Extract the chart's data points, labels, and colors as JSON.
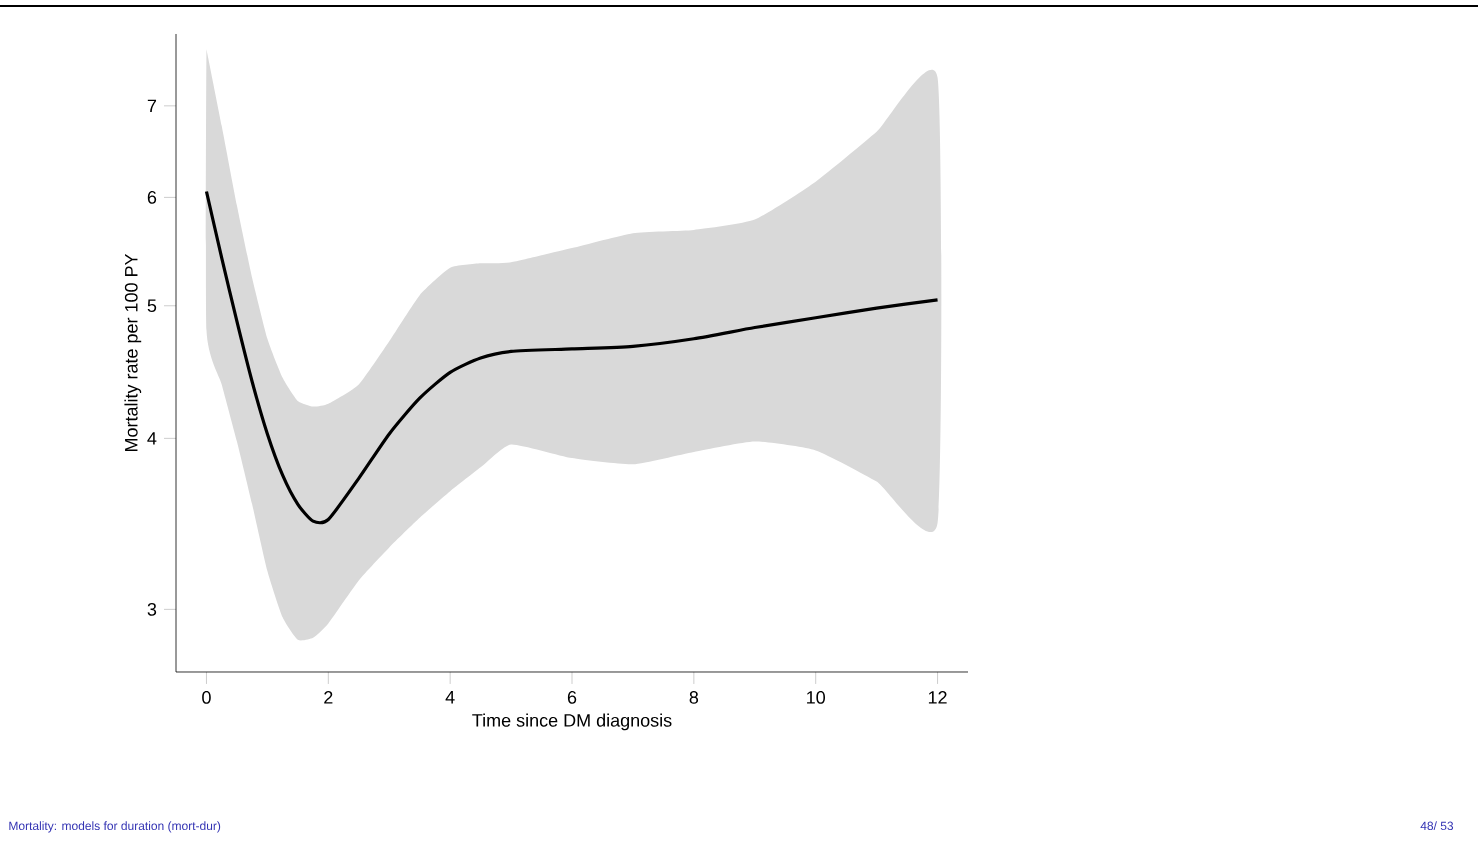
{
  "chart_data": {
    "type": "line",
    "xlabel": "Time since DM diagnosis",
    "ylabel": "Mortality rate per 100 PY",
    "annotations": [
      "Mortality: models for duration (mort-dur)",
      "48/ 53"
    ],
    "x": [
      0,
      0.25,
      0.5,
      0.75,
      1,
      1.25,
      1.5,
      1.75,
      2,
      2.5,
      3,
      3.5,
      4,
      4.5,
      5,
      6,
      7,
      8,
      9,
      10,
      11,
      12
    ],
    "series": [
      {
        "color": "#000000",
        "values": [
          6.06,
          5.42,
          4.87,
          4.4,
          4.03,
          3.76,
          3.58,
          3.48,
          3.49,
          3.74,
          4.03,
          4.28,
          4.47,
          4.58,
          4.63,
          4.65,
          4.67,
          4.73,
          4.82,
          4.9,
          4.98,
          5.05
        ],
        "lower": [
          4.8,
          4.38,
          3.98,
          3.58,
          3.2,
          2.96,
          2.85,
          2.86,
          2.93,
          3.15,
          3.33,
          3.5,
          3.66,
          3.81,
          3.96,
          3.87,
          3.83,
          3.91,
          3.98,
          3.92,
          3.72,
          3.47
        ],
        "upper": [
          7.7,
          6.77,
          5.92,
          5.24,
          4.73,
          4.43,
          4.26,
          4.22,
          4.24,
          4.38,
          4.71,
          5.09,
          5.33,
          5.37,
          5.38,
          5.51,
          5.65,
          5.68,
          5.78,
          6.16,
          6.7,
          7.34
        ]
      }
    ],
    "xlim": [
      -0.5,
      12.5
    ],
    "ylim": [
      2.7,
      7.9
    ],
    "xticks": [
      0,
      2,
      4,
      6,
      8,
      10,
      12
    ],
    "yticks": [
      3,
      4,
      5,
      6,
      7
    ],
    "log": "y",
    "line_style": "solid"
  }
}
